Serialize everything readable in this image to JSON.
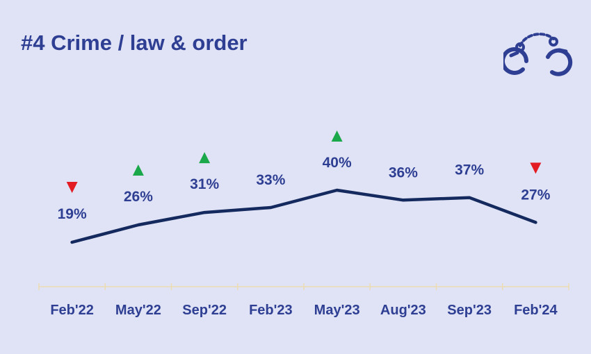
{
  "title": "#4 Crime / law & order",
  "icon": "handcuffs-icon",
  "colors": {
    "background": "#e0e3f5",
    "text": "#2e3f93",
    "line": "#142a5e",
    "up": "#1aa84a",
    "down": "#e31b23",
    "axis": "#ecdcb4"
  },
  "chart_data": {
    "type": "line",
    "categories": [
      "Feb'22",
      "May'22",
      "Sep'22",
      "Feb'23",
      "May'23",
      "Aug'23",
      "Sep'23",
      "Feb'24"
    ],
    "values": [
      19,
      26,
      31,
      33,
      40,
      36,
      37,
      27
    ],
    "data_labels": [
      "19%",
      "26%",
      "31%",
      "33%",
      "40%",
      "36%",
      "37%",
      "27%"
    ],
    "change_markers": [
      "down",
      "up",
      "up",
      "",
      "up",
      "",
      "",
      "down"
    ],
    "title": "#4 Crime / law & order",
    "xlabel": "",
    "ylabel": "",
    "grid": false
  }
}
